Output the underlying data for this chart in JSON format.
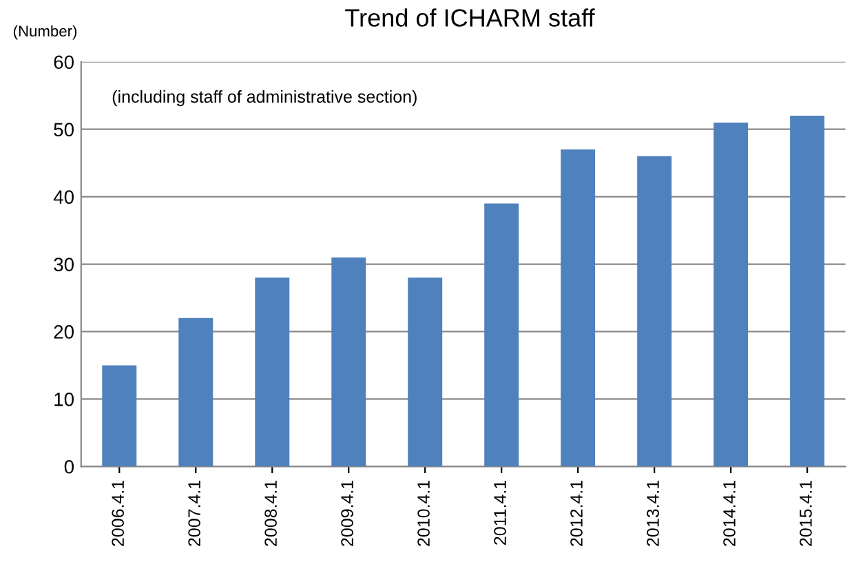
{
  "chart_data": {
    "type": "bar",
    "title": "Trend of ICHARM staff",
    "ylabel": "(Number)",
    "annotations": [
      "(including staff of administrative section)"
    ],
    "categories": [
      "2006.4.1",
      "2007.4.1",
      "2008.4.1",
      "2009.4.1",
      "2010.4.1",
      "2011.4.1",
      "2012.4.1",
      "2013.4.1",
      "2014.4.1",
      "2015.4.1"
    ],
    "values": [
      15,
      22,
      28,
      31,
      28,
      39,
      47,
      46,
      51,
      52
    ],
    "color": "#4f81bd",
    "ylim": [
      0,
      60
    ],
    "yticks": [
      0,
      10,
      20,
      30,
      40,
      50,
      60
    ],
    "grid": "y"
  }
}
